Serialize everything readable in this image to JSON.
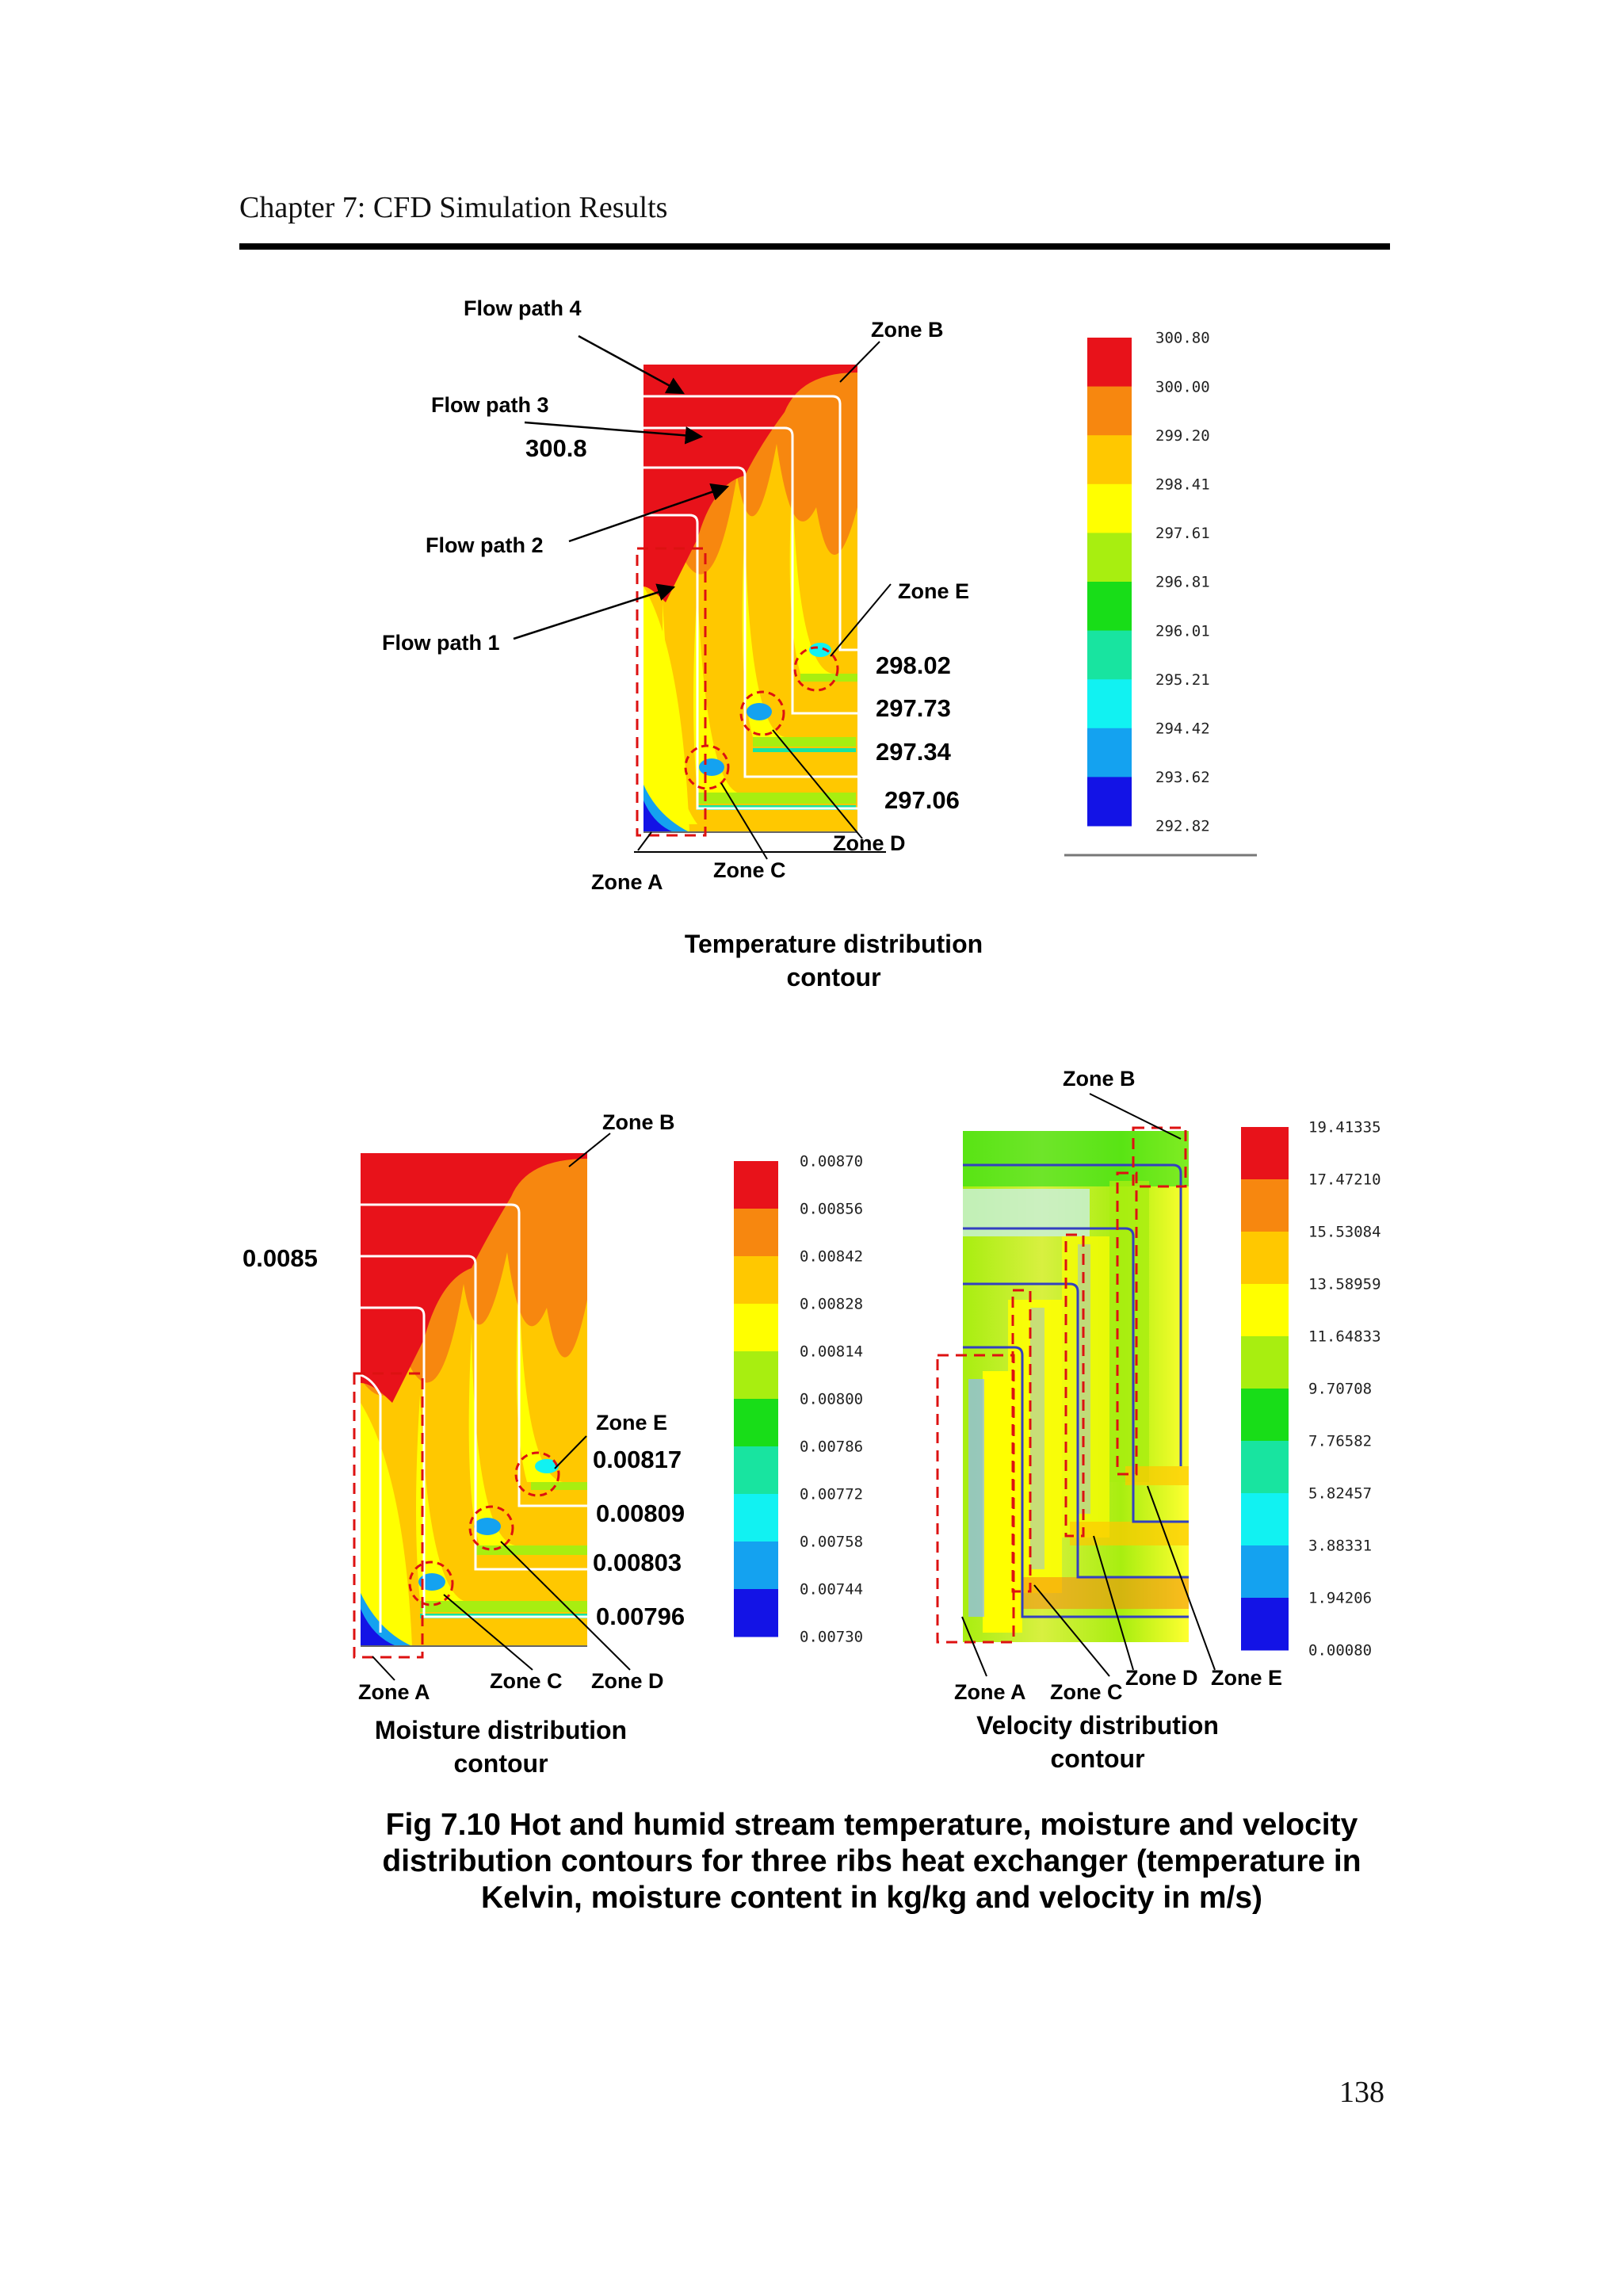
{
  "header": {
    "chapter_title": "Chapter 7: CFD Simulation Results",
    "page_number": "138"
  },
  "temperature_panel": {
    "title_line1": "Temperature distribution",
    "title_line2": "contour",
    "flow_paths": [
      "Flow path 4",
      "Flow path 3",
      "Flow path 2",
      "Flow path 1"
    ],
    "inlet_value": "300.8",
    "zones": [
      "Zone A",
      "Zone B",
      "Zone C",
      "Zone D",
      "Zone E"
    ],
    "zone_values": [
      "298.02",
      "297.73",
      "297.34",
      "297.06"
    ],
    "legend_ticks": [
      "300.80",
      "300.00",
      "299.20",
      "298.41",
      "297.61",
      "296.81",
      "296.01",
      "295.21",
      "294.42",
      "293.62",
      "292.82"
    ]
  },
  "moisture_panel": {
    "title_line1": "Moisture distribution",
    "title_line2": "contour",
    "inlet_value": "0.0085",
    "zones": [
      "Zone A",
      "Zone B",
      "Zone C",
      "Zone D",
      "Zone E"
    ],
    "zone_values": [
      "0.00817",
      "0.00809",
      "0.00803",
      "0.00796"
    ],
    "legend_ticks": [
      "0.00870",
      "0.00856",
      "0.00842",
      "0.00828",
      "0.00814",
      "0.00800",
      "0.00786",
      "0.00772",
      "0.00758",
      "0.00744",
      "0.00730"
    ]
  },
  "velocity_panel": {
    "title_line1": "Velocity distribution",
    "title_line2": "contour",
    "zones": [
      "Zone A",
      "Zone B",
      "Zone C",
      "Zone D",
      "Zone E"
    ],
    "legend_ticks": [
      "19.41335",
      "17.47210",
      "15.53084",
      "13.58959",
      "11.64833",
      "9.70708",
      "7.76582",
      "5.82457",
      "3.88331",
      "1.94206",
      "0.00080"
    ]
  },
  "legend_colors": [
    "#e8121a",
    "#f7870f",
    "#ffc800",
    "#ffff00",
    "#a8ee10",
    "#18dd18",
    "#18e4a0",
    "#11f2f2",
    "#14a2f0",
    "#1313e6"
  ],
  "caption": {
    "line1": "Fig 7.10 Hot and humid stream temperature, moisture and velocity",
    "line2": "distribution contours for three ribs heat exchanger (temperature in",
    "line3": "Kelvin, moisture content in kg/kg and velocity in m/s)"
  }
}
